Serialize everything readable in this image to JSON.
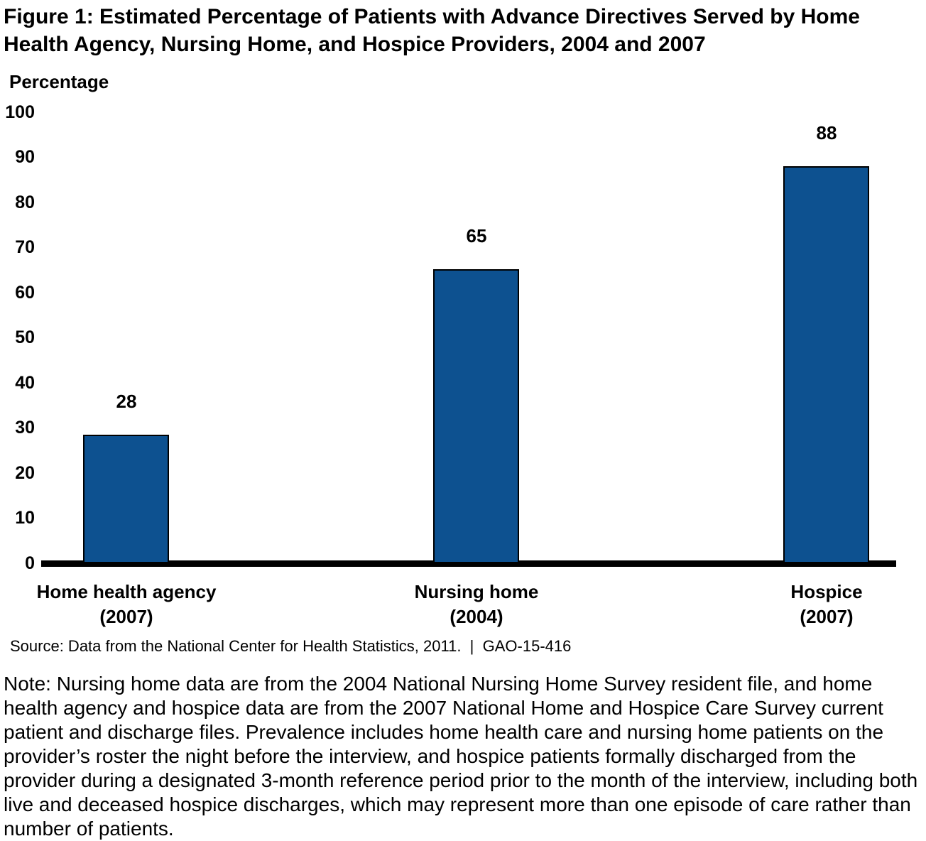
{
  "figure": {
    "title": "Figure 1: Estimated Percentage of Patients with Advance Directives Served by Home Health Agency, Nursing Home, and Hospice Providers, 2004 and 2007",
    "source": "Source: Data from the National Center for Health Statistics, 2011.  |  GAO-15-416",
    "note": "Note: Nursing home data are from the 2004 National Nursing Home Survey resident file, and home health agency and hospice data are from the 2007 National Home and Hospice Care Survey current patient and discharge files. Prevalence includes home health care and nursing home patients on the provider’s roster the night before the interview, and hospice patients formally discharged from the provider during a designated 3-month reference period prior to the month of the interview, including both live and deceased hospice discharges, which may represent more than one episode of care rather than number of patients."
  },
  "chart_data": {
    "type": "bar",
    "title": "Figure 1: Estimated Percentage of Patients with Advance Directives Served by Home Health Agency, Nursing Home, and Hospice Providers, 2004 and 2007",
    "ylabel": "Percentage",
    "xlabel": "",
    "categories": [
      "Home health agency",
      "Nursing home",
      "Hospice"
    ],
    "category_sublabels": [
      "(2007)",
      "(2004)",
      "(2007)"
    ],
    "values": [
      28,
      65,
      88
    ],
    "value_labels": [
      "28",
      "65",
      "88"
    ],
    "ylim": [
      0,
      100
    ],
    "yticks": [
      0,
      10,
      20,
      30,
      40,
      50,
      60,
      70,
      80,
      90,
      100
    ],
    "grid": false,
    "legend": false,
    "bar_color": "#0D5190",
    "bar_border_color": "#000000",
    "axis_color": "#000000"
  }
}
